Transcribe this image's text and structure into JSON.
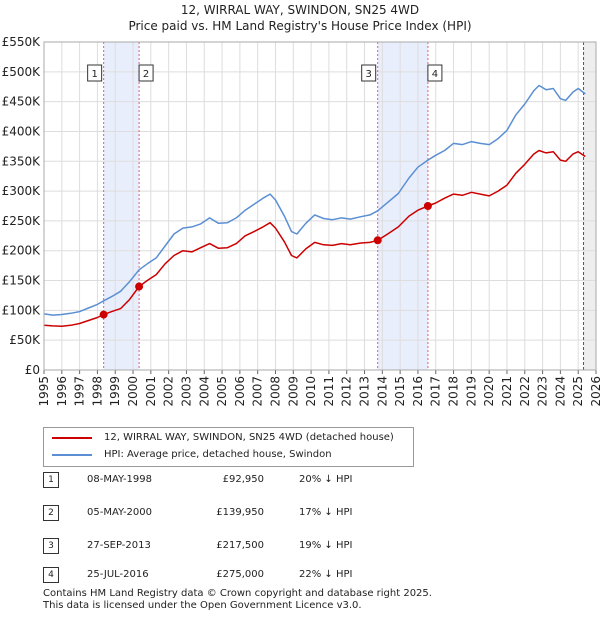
{
  "title_line1": "12, WIRRAL WAY, SWINDON, SN25 4WD",
  "title_line2": "Price paid vs. HM Land Registry's House Price Index (HPI)",
  "colors": {
    "price_line": "#cc0000",
    "hpi_line": "#5b8fd4",
    "band_fill": "#e8eefb",
    "marker_line": "#e06070",
    "grid": "#dddddd"
  },
  "legend": {
    "price_label": "12, WIRRAL WAY, SWINDON, SN25 4WD (detached house)",
    "hpi_label": "HPI: Average price, detached house, Swindon"
  },
  "transactions": [
    {
      "num": "1",
      "date": "08-MAY-1998",
      "price": "£92,950",
      "hpi": "20% ↓ HPI"
    },
    {
      "num": "2",
      "date": "05-MAY-2000",
      "price": "£139,950",
      "hpi": "17% ↓ HPI"
    },
    {
      "num": "3",
      "date": "27-SEP-2013",
      "price": "£217,500",
      "hpi": "19% ↓ HPI"
    },
    {
      "num": "4",
      "date": "25-JUL-2016",
      "price": "£275,000",
      "hpi": "22% ↓ HPI"
    }
  ],
  "footer": {
    "line1": "Contains HM Land Registry data © Crown copyright and database right 2025.",
    "line2": "This data is licensed under the Open Government Licence v3.0."
  },
  "chart_data": {
    "type": "line",
    "xlim": [
      1995,
      2026
    ],
    "ylim": [
      0,
      550000
    ],
    "yticks": [
      0,
      50000,
      100000,
      150000,
      200000,
      250000,
      300000,
      350000,
      400000,
      450000,
      500000,
      550000
    ],
    "ytick_labels": [
      "£0",
      "£50K",
      "£100K",
      "£150K",
      "£200K",
      "£250K",
      "£300K",
      "£350K",
      "£400K",
      "£450K",
      "£500K",
      "£550K"
    ],
    "xticks": [
      1995,
      1996,
      1997,
      1998,
      1999,
      2000,
      2001,
      2002,
      2003,
      2004,
      2005,
      2006,
      2007,
      2008,
      2009,
      2010,
      2011,
      2012,
      2013,
      2014,
      2015,
      2016,
      2017,
      2018,
      2019,
      2020,
      2021,
      2022,
      2023,
      2024,
      2025,
      2026
    ],
    "xtick_labels": [
      "1995",
      "1996",
      "1997",
      "1998",
      "1999",
      "2000",
      "2001",
      "2002",
      "2003",
      "2004",
      "2005",
      "2006",
      "2007",
      "2008",
      "2009",
      "2010",
      "2011",
      "2012",
      "2013",
      "2014",
      "2015",
      "2016",
      "2017",
      "2018",
      "2019",
      "2020",
      "2021",
      "2022",
      "2023",
      "2024",
      "2025",
      "2026"
    ],
    "shaded_bands": [
      [
        1998.35,
        2000.34
      ],
      [
        2013.74,
        2016.56
      ]
    ],
    "forecast_start": 2025.3,
    "series": [
      {
        "name": "12, WIRRAL WAY, SWINDON, SN25 4WD (detached house)",
        "points": [
          [
            1995,
            75000
          ],
          [
            1995.5,
            74000
          ],
          [
            1996,
            73500
          ],
          [
            1996.5,
            75000
          ],
          [
            1997,
            78000
          ],
          [
            1997.5,
            83000
          ],
          [
            1998,
            88000
          ],
          [
            1998.35,
            92950
          ],
          [
            1998.8,
            98000
          ],
          [
            1999.3,
            103000
          ],
          [
            1999.8,
            118000
          ],
          [
            2000.34,
            139950
          ],
          [
            2000.8,
            150000
          ],
          [
            2001.3,
            160000
          ],
          [
            2001.8,
            178000
          ],
          [
            2002.3,
            192000
          ],
          [
            2002.8,
            200000
          ],
          [
            2003.3,
            198000
          ],
          [
            2003.8,
            205000
          ],
          [
            2004.3,
            212000
          ],
          [
            2004.8,
            204000
          ],
          [
            2005.3,
            205000
          ],
          [
            2005.8,
            212000
          ],
          [
            2006.3,
            225000
          ],
          [
            2006.8,
            232000
          ],
          [
            2007.3,
            240000
          ],
          [
            2007.7,
            247000
          ],
          [
            2008,
            238000
          ],
          [
            2008.5,
            215000
          ],
          [
            2008.9,
            192000
          ],
          [
            2009.2,
            188000
          ],
          [
            2009.7,
            203000
          ],
          [
            2010.2,
            214000
          ],
          [
            2010.7,
            210000
          ],
          [
            2011.2,
            209000
          ],
          [
            2011.7,
            212000
          ],
          [
            2012.2,
            210000
          ],
          [
            2012.8,
            213000
          ],
          [
            2013.3,
            214000
          ],
          [
            2013.74,
            217500
          ],
          [
            2014.3,
            228000
          ],
          [
            2014.9,
            240000
          ],
          [
            2015.5,
            258000
          ],
          [
            2016,
            268000
          ],
          [
            2016.56,
            275000
          ],
          [
            2017,
            280000
          ],
          [
            2017.5,
            288000
          ],
          [
            2018,
            295000
          ],
          [
            2018.5,
            293000
          ],
          [
            2019,
            298000
          ],
          [
            2019.5,
            295000
          ],
          [
            2020,
            292000
          ],
          [
            2020.5,
            300000
          ],
          [
            2021,
            310000
          ],
          [
            2021.5,
            330000
          ],
          [
            2022,
            345000
          ],
          [
            2022.5,
            362000
          ],
          [
            2022.8,
            368000
          ],
          [
            2023.2,
            364000
          ],
          [
            2023.6,
            366000
          ],
          [
            2024,
            352000
          ],
          [
            2024.3,
            350000
          ],
          [
            2024.7,
            362000
          ],
          [
            2025,
            366000
          ],
          [
            2025.4,
            358000
          ]
        ]
      },
      {
        "name": "HPI: Average price, detached house, Swindon",
        "points": [
          [
            1995,
            94000
          ],
          [
            1995.5,
            92000
          ],
          [
            1996,
            93000
          ],
          [
            1996.5,
            95000
          ],
          [
            1997,
            98000
          ],
          [
            1997.5,
            104000
          ],
          [
            1998,
            110000
          ],
          [
            1998.35,
            116000
          ],
          [
            1998.8,
            123000
          ],
          [
            1999.3,
            132000
          ],
          [
            1999.8,
            148000
          ],
          [
            2000.34,
            168000
          ],
          [
            2000.8,
            178000
          ],
          [
            2001.3,
            188000
          ],
          [
            2001.8,
            208000
          ],
          [
            2002.3,
            228000
          ],
          [
            2002.8,
            238000
          ],
          [
            2003.3,
            240000
          ],
          [
            2003.8,
            245000
          ],
          [
            2004.3,
            255000
          ],
          [
            2004.8,
            246000
          ],
          [
            2005.3,
            247000
          ],
          [
            2005.8,
            255000
          ],
          [
            2006.3,
            268000
          ],
          [
            2006.8,
            278000
          ],
          [
            2007.3,
            288000
          ],
          [
            2007.7,
            295000
          ],
          [
            2008,
            285000
          ],
          [
            2008.5,
            258000
          ],
          [
            2008.9,
            232000
          ],
          [
            2009.2,
            228000
          ],
          [
            2009.7,
            246000
          ],
          [
            2010.2,
            260000
          ],
          [
            2010.7,
            254000
          ],
          [
            2011.2,
            252000
          ],
          [
            2011.7,
            255000
          ],
          [
            2012.2,
            253000
          ],
          [
            2012.8,
            257000
          ],
          [
            2013.3,
            260000
          ],
          [
            2013.74,
            267000
          ],
          [
            2014.3,
            281000
          ],
          [
            2014.9,
            296000
          ],
          [
            2015.5,
            322000
          ],
          [
            2016,
            340000
          ],
          [
            2016.56,
            352000
          ],
          [
            2017,
            360000
          ],
          [
            2017.5,
            368000
          ],
          [
            2018,
            380000
          ],
          [
            2018.5,
            378000
          ],
          [
            2019,
            383000
          ],
          [
            2019.5,
            380000
          ],
          [
            2020,
            378000
          ],
          [
            2020.5,
            388000
          ],
          [
            2021,
            402000
          ],
          [
            2021.5,
            428000
          ],
          [
            2022,
            446000
          ],
          [
            2022.5,
            468000
          ],
          [
            2022.8,
            477000
          ],
          [
            2023.2,
            470000
          ],
          [
            2023.6,
            472000
          ],
          [
            2024,
            455000
          ],
          [
            2024.3,
            452000
          ],
          [
            2024.7,
            466000
          ],
          [
            2025,
            472000
          ],
          [
            2025.4,
            463000
          ]
        ]
      }
    ],
    "sales": [
      {
        "num": "1",
        "x": 1998.35,
        "y": 92950
      },
      {
        "num": "2",
        "x": 2000.34,
        "y": 139950
      },
      {
        "num": "3",
        "x": 2013.74,
        "y": 217500
      },
      {
        "num": "4",
        "x": 2016.56,
        "y": 275000
      }
    ]
  }
}
